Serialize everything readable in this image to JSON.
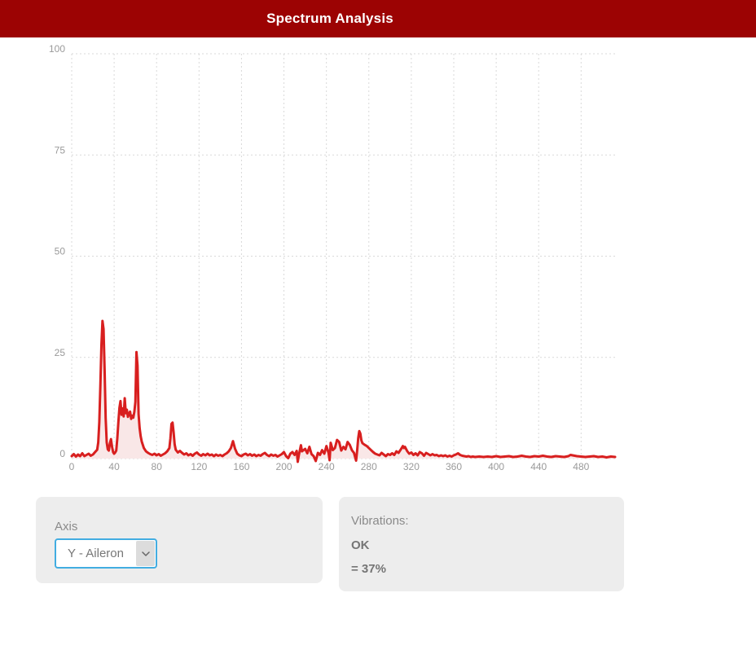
{
  "header": {
    "title": "Spectrum Analysis",
    "bg_color": "#9c0303",
    "text_color": "#ffffff"
  },
  "controls": {
    "axis": {
      "label": "Axis",
      "selected": "Y - Aileron",
      "select_border_color": "#42ade1"
    },
    "vibrations": {
      "label": "Vibrations:",
      "status": "OK",
      "value": "= 37%"
    }
  },
  "chart_data": {
    "type": "area",
    "title": "",
    "xlabel": "",
    "ylabel": "",
    "xlim": [
      0,
      512
    ],
    "ylim": [
      0,
      100
    ],
    "x_ticks": [
      0,
      40,
      80,
      120,
      160,
      200,
      240,
      280,
      320,
      360,
      400,
      440,
      480
    ],
    "y_ticks": [
      0,
      25,
      50,
      75,
      100
    ],
    "grid": "dotted",
    "legend": "none",
    "line_color": "#d81f1f",
    "fill_color": "#f9e7e7",
    "grid_color": "#d9d9d9",
    "tick_color": "#9a9a9a",
    "points": [
      [
        0,
        0.6
      ],
      [
        2,
        1.1
      ],
      [
        4,
        0.5
      ],
      [
        6,
        1.0
      ],
      [
        8,
        0.6
      ],
      [
        10,
        1.3
      ],
      [
        12,
        0.6
      ],
      [
        14,
        0.9
      ],
      [
        16,
        1.2
      ],
      [
        18,
        0.7
      ],
      [
        20,
        1.0
      ],
      [
        22,
        1.6
      ],
      [
        24,
        2.2
      ],
      [
        25,
        4.0
      ],
      [
        26,
        9.0
      ],
      [
        27,
        18.0
      ],
      [
        28,
        28.0
      ],
      [
        29,
        34.0
      ],
      [
        30,
        32.0
      ],
      [
        31,
        22.0
      ],
      [
        32,
        10.0
      ],
      [
        33,
        4.0
      ],
      [
        34,
        2.3
      ],
      [
        35,
        2.0
      ],
      [
        36,
        3.8
      ],
      [
        37,
        4.8
      ],
      [
        38,
        3.0
      ],
      [
        39,
        1.6
      ],
      [
        40,
        1.2
      ],
      [
        41,
        1.5
      ],
      [
        42,
        2.0
      ],
      [
        43,
        5.0
      ],
      [
        44,
        9.0
      ],
      [
        45,
        12.5
      ],
      [
        46,
        14.2
      ],
      [
        47,
        10.8
      ],
      [
        48,
        12.4
      ],
      [
        49,
        10.4
      ],
      [
        50,
        14.9
      ],
      [
        51,
        11.2
      ],
      [
        52,
        12.1
      ],
      [
        53,
        10.3
      ],
      [
        54,
        11.0
      ],
      [
        55,
        11.6
      ],
      [
        56,
        9.8
      ],
      [
        57,
        10.6
      ],
      [
        58,
        10.1
      ],
      [
        59,
        11.5
      ],
      [
        60,
        14.0
      ],
      [
        61,
        26.3
      ],
      [
        62,
        23.0
      ],
      [
        63,
        11.0
      ],
      [
        64,
        7.5
      ],
      [
        65,
        5.5
      ],
      [
        66,
        4.2
      ],
      [
        67,
        3.4
      ],
      [
        68,
        2.6
      ],
      [
        70,
        1.8
      ],
      [
        72,
        1.4
      ],
      [
        74,
        1.1
      ],
      [
        76,
        0.9
      ],
      [
        78,
        1.2
      ],
      [
        80,
        0.8
      ],
      [
        82,
        1.1
      ],
      [
        84,
        0.7
      ],
      [
        86,
        1.0
      ],
      [
        88,
        1.3
      ],
      [
        90,
        1.8
      ],
      [
        92,
        2.6
      ],
      [
        93,
        5.0
      ],
      [
        94,
        8.6
      ],
      [
        95,
        8.9
      ],
      [
        96,
        6.5
      ],
      [
        97,
        3.5
      ],
      [
        98,
        2.2
      ],
      [
        100,
        1.5
      ],
      [
        102,
        1.9
      ],
      [
        104,
        1.4
      ],
      [
        106,
        1.0
      ],
      [
        108,
        1.3
      ],
      [
        110,
        0.8
      ],
      [
        112,
        1.1
      ],
      [
        114,
        0.7
      ],
      [
        116,
        1.2
      ],
      [
        118,
        1.5
      ],
      [
        120,
        1.0
      ],
      [
        122,
        0.7
      ],
      [
        124,
        1.1
      ],
      [
        126,
        0.8
      ],
      [
        128,
        1.2
      ],
      [
        130,
        0.8
      ],
      [
        132,
        1.0
      ],
      [
        134,
        0.6
      ],
      [
        136,
        1.0
      ],
      [
        138,
        0.7
      ],
      [
        140,
        0.9
      ],
      [
        142,
        0.6
      ],
      [
        144,
        1.0
      ],
      [
        146,
        1.3
      ],
      [
        148,
        1.8
      ],
      [
        150,
        2.6
      ],
      [
        152,
        4.3
      ],
      [
        154,
        2.4
      ],
      [
        156,
        1.2
      ],
      [
        158,
        0.8
      ],
      [
        160,
        0.6
      ],
      [
        162,
        1.0
      ],
      [
        164,
        1.2
      ],
      [
        166,
        0.8
      ],
      [
        168,
        1.1
      ],
      [
        170,
        0.7
      ],
      [
        172,
        1.0
      ],
      [
        174,
        0.6
      ],
      [
        176,
        0.9
      ],
      [
        178,
        0.7
      ],
      [
        180,
        1.1
      ],
      [
        182,
        1.4
      ],
      [
        184,
        0.9
      ],
      [
        186,
        0.6
      ],
      [
        188,
        1.0
      ],
      [
        190,
        0.7
      ],
      [
        192,
        0.9
      ],
      [
        194,
        0.5
      ],
      [
        196,
        0.8
      ],
      [
        198,
        1.1
      ],
      [
        200,
        1.6
      ],
      [
        202,
        0.6
      ],
      [
        204,
        0.1
      ],
      [
        206,
        1.2
      ],
      [
        208,
        1.6
      ],
      [
        210,
        0.9
      ],
      [
        212,
        1.9
      ],
      [
        213,
        -0.8
      ],
      [
        214,
        0.8
      ],
      [
        216,
        3.3
      ],
      [
        217,
        1.8
      ],
      [
        218,
        2.0
      ],
      [
        220,
        2.4
      ],
      [
        222,
        1.3
      ],
      [
        224,
        2.9
      ],
      [
        226,
        1.1
      ],
      [
        228,
        0.6
      ],
      [
        230,
        -0.6
      ],
      [
        232,
        1.4
      ],
      [
        234,
        0.9
      ],
      [
        236,
        2.1
      ],
      [
        238,
        1.2
      ],
      [
        240,
        3.1
      ],
      [
        242,
        1.4
      ],
      [
        243,
        -0.4
      ],
      [
        244,
        3.9
      ],
      [
        246,
        2.1
      ],
      [
        248,
        2.6
      ],
      [
        250,
        4.6
      ],
      [
        252,
        4.1
      ],
      [
        254,
        2.0
      ],
      [
        256,
        2.9
      ],
      [
        258,
        2.3
      ],
      [
        260,
        4.1
      ],
      [
        262,
        3.4
      ],
      [
        264,
        2.1
      ],
      [
        266,
        1.4
      ],
      [
        268,
        -0.5
      ],
      [
        269,
        2.0
      ],
      [
        270,
        5.0
      ],
      [
        271,
        6.8
      ],
      [
        272,
        6.2
      ],
      [
        273,
        4.5
      ],
      [
        274,
        3.8
      ],
      [
        276,
        3.4
      ],
      [
        278,
        3.1
      ],
      [
        280,
        2.6
      ],
      [
        282,
        2.1
      ],
      [
        284,
        1.6
      ],
      [
        286,
        1.2
      ],
      [
        288,
        1.0
      ],
      [
        290,
        0.8
      ],
      [
        292,
        1.4
      ],
      [
        294,
        1.0
      ],
      [
        296,
        0.6
      ],
      [
        298,
        1.1
      ],
      [
        300,
        0.9
      ],
      [
        302,
        1.3
      ],
      [
        304,
        0.9
      ],
      [
        306,
        1.8
      ],
      [
        308,
        1.4
      ],
      [
        310,
        2.2
      ],
      [
        312,
        3.1
      ],
      [
        313,
        2.6
      ],
      [
        314,
        2.9
      ],
      [
        316,
        1.9
      ],
      [
        318,
        1.2
      ],
      [
        320,
        1.5
      ],
      [
        322,
        0.9
      ],
      [
        324,
        1.3
      ],
      [
        326,
        0.8
      ],
      [
        328,
        1.6
      ],
      [
        330,
        1.3
      ],
      [
        332,
        0.7
      ],
      [
        334,
        1.4
      ],
      [
        336,
        1.1
      ],
      [
        338,
        0.8
      ],
      [
        340,
        1.1
      ],
      [
        342,
        0.8
      ],
      [
        344,
        0.9
      ],
      [
        346,
        0.6
      ],
      [
        348,
        0.8
      ],
      [
        350,
        0.6
      ],
      [
        352,
        0.8
      ],
      [
        354,
        0.5
      ],
      [
        356,
        0.7
      ],
      [
        358,
        0.5
      ],
      [
        360,
        0.8
      ],
      [
        362,
        1.0
      ],
      [
        364,
        1.3
      ],
      [
        366,
        0.9
      ],
      [
        368,
        0.7
      ],
      [
        370,
        0.6
      ],
      [
        372,
        0.5
      ],
      [
        374,
        0.6
      ],
      [
        376,
        0.4
      ],
      [
        378,
        0.5
      ],
      [
        380,
        0.4
      ],
      [
        384,
        0.5
      ],
      [
        388,
        0.4
      ],
      [
        392,
        0.5
      ],
      [
        396,
        0.4
      ],
      [
        400,
        0.6
      ],
      [
        404,
        0.4
      ],
      [
        408,
        0.5
      ],
      [
        412,
        0.6
      ],
      [
        416,
        0.4
      ],
      [
        420,
        0.5
      ],
      [
        424,
        0.7
      ],
      [
        428,
        0.5
      ],
      [
        432,
        0.4
      ],
      [
        436,
        0.6
      ],
      [
        440,
        0.5
      ],
      [
        444,
        0.7
      ],
      [
        448,
        0.5
      ],
      [
        452,
        0.4
      ],
      [
        456,
        0.6
      ],
      [
        460,
        0.5
      ],
      [
        464,
        0.4
      ],
      [
        468,
        0.6
      ],
      [
        470,
        0.9
      ],
      [
        472,
        0.8
      ],
      [
        476,
        0.6
      ],
      [
        480,
        0.5
      ],
      [
        484,
        0.4
      ],
      [
        488,
        0.5
      ],
      [
        492,
        0.6
      ],
      [
        496,
        0.4
      ],
      [
        500,
        0.5
      ],
      [
        504,
        0.3
      ],
      [
        508,
        0.5
      ],
      [
        512,
        0.4
      ]
    ]
  }
}
